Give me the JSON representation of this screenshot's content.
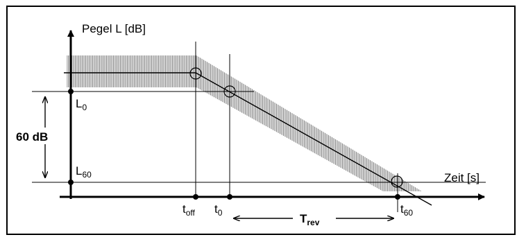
{
  "labels": {
    "y_axis": "Pegel L [dB]",
    "x_axis": "Zeit [s]",
    "level_L0_main": "L",
    "level_L0_sub": "0",
    "level_L60_main": "L",
    "level_L60_sub": "60",
    "range": "60 dB",
    "t_off_main": "t",
    "t_off_sub": "off",
    "t0_main": "t",
    "t0_sub": "0",
    "t60_main": "t",
    "t60_sub": "60",
    "trev_main": "T",
    "trev_sub": "rev"
  },
  "colors": {
    "line": "#000000",
    "band": "#8c8c8c",
    "background": "#ffffff"
  }
}
